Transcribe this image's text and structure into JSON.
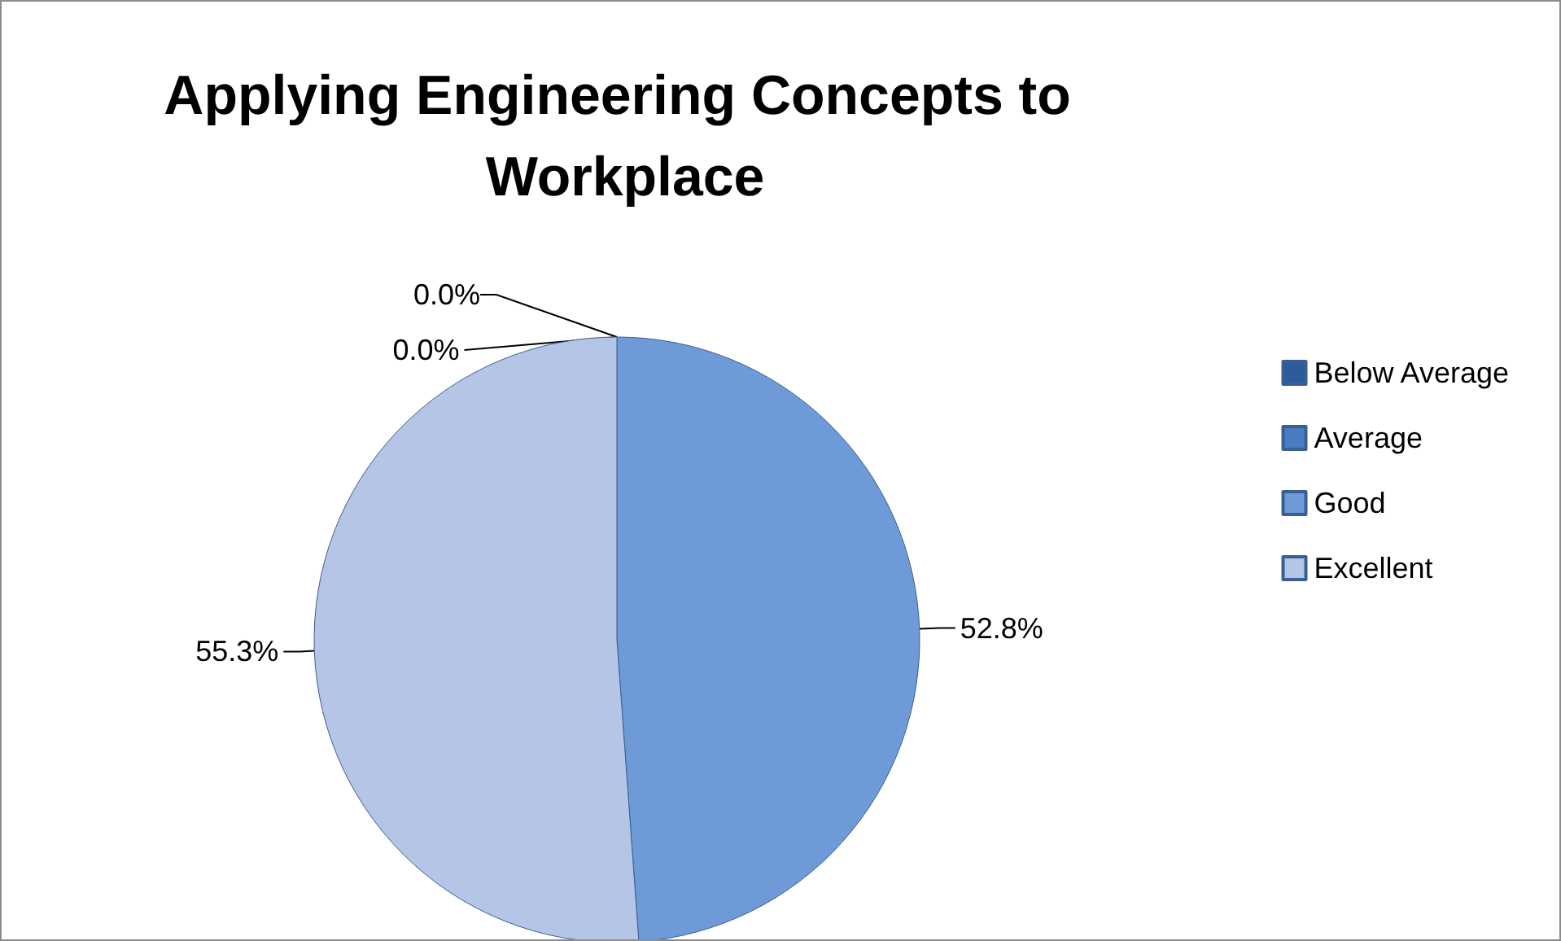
{
  "chart_data": {
    "type": "pie",
    "title": "Applying Engineering Concepts to Workplace",
    "categories": [
      "Below Average",
      "Average",
      "Good",
      "Excellent"
    ],
    "values": [
      0,
      0,
      52.8,
      55.3
    ],
    "value_labels": [
      "0.0%",
      "0.0%",
      "52.8%",
      "55.3%"
    ],
    "colors": [
      "#2c5b9e",
      "#4a7cc4",
      "#6f9ad8",
      "#b4c5e5"
    ],
    "legend": "right"
  }
}
